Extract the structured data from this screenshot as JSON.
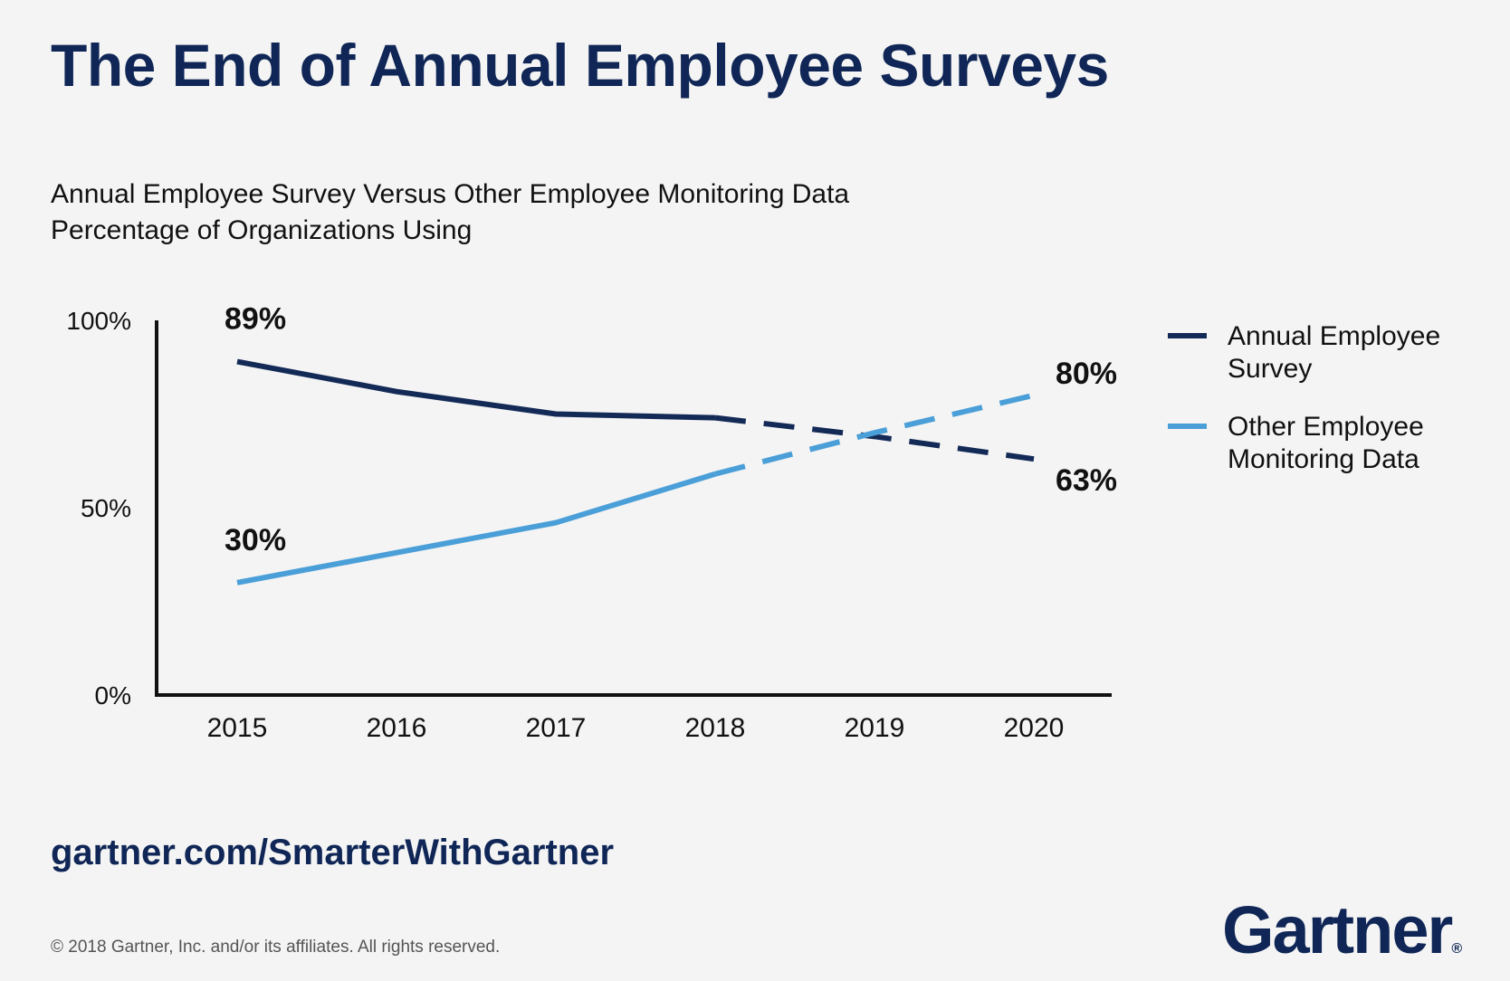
{
  "title": "The End of Annual Employee Surveys",
  "subtitle_line1": "Annual Employee Survey Versus Other Employee Monitoring Data",
  "subtitle_line2": "Percentage of Organizations Using",
  "url": "gartner.com/SmarterWithGartner",
  "copyright": "© 2018 Gartner, Inc. and/or its affiliates. All rights reserved.",
  "logo": {
    "text": "Gartner",
    "mark": "®"
  },
  "chart_data": {
    "type": "line",
    "x": [
      "2015",
      "2016",
      "2017",
      "2018",
      "2019",
      "2020"
    ],
    "ylim": [
      0,
      100
    ],
    "yticks": [
      {
        "value": 0,
        "label": "0%"
      },
      {
        "value": 50,
        "label": "50%"
      },
      {
        "value": 100,
        "label": "100%"
      }
    ],
    "grid": false,
    "legend_position": "right",
    "projected_from": "2018",
    "series": [
      {
        "name": "Annual Employee Survey",
        "legend_lines": [
          "Annual Employee",
          "Survey"
        ],
        "color": "#132a57",
        "values": [
          89,
          81,
          75,
          74,
          69,
          63
        ],
        "labels": [
          {
            "x": "2015",
            "text": "89%",
            "position": "above"
          },
          {
            "x": "2020",
            "text": "63%",
            "position": "right"
          }
        ]
      },
      {
        "name": "Other Employee Monitoring Data",
        "legend_lines": [
          "Other Employee",
          "Monitoring Data"
        ],
        "color": "#4b9fd8",
        "values": [
          30,
          38,
          46,
          59,
          70,
          80
        ],
        "labels": [
          {
            "x": "2015",
            "text": "30%",
            "position": "above"
          },
          {
            "x": "2020",
            "text": "80%",
            "position": "right"
          }
        ]
      }
    ]
  }
}
